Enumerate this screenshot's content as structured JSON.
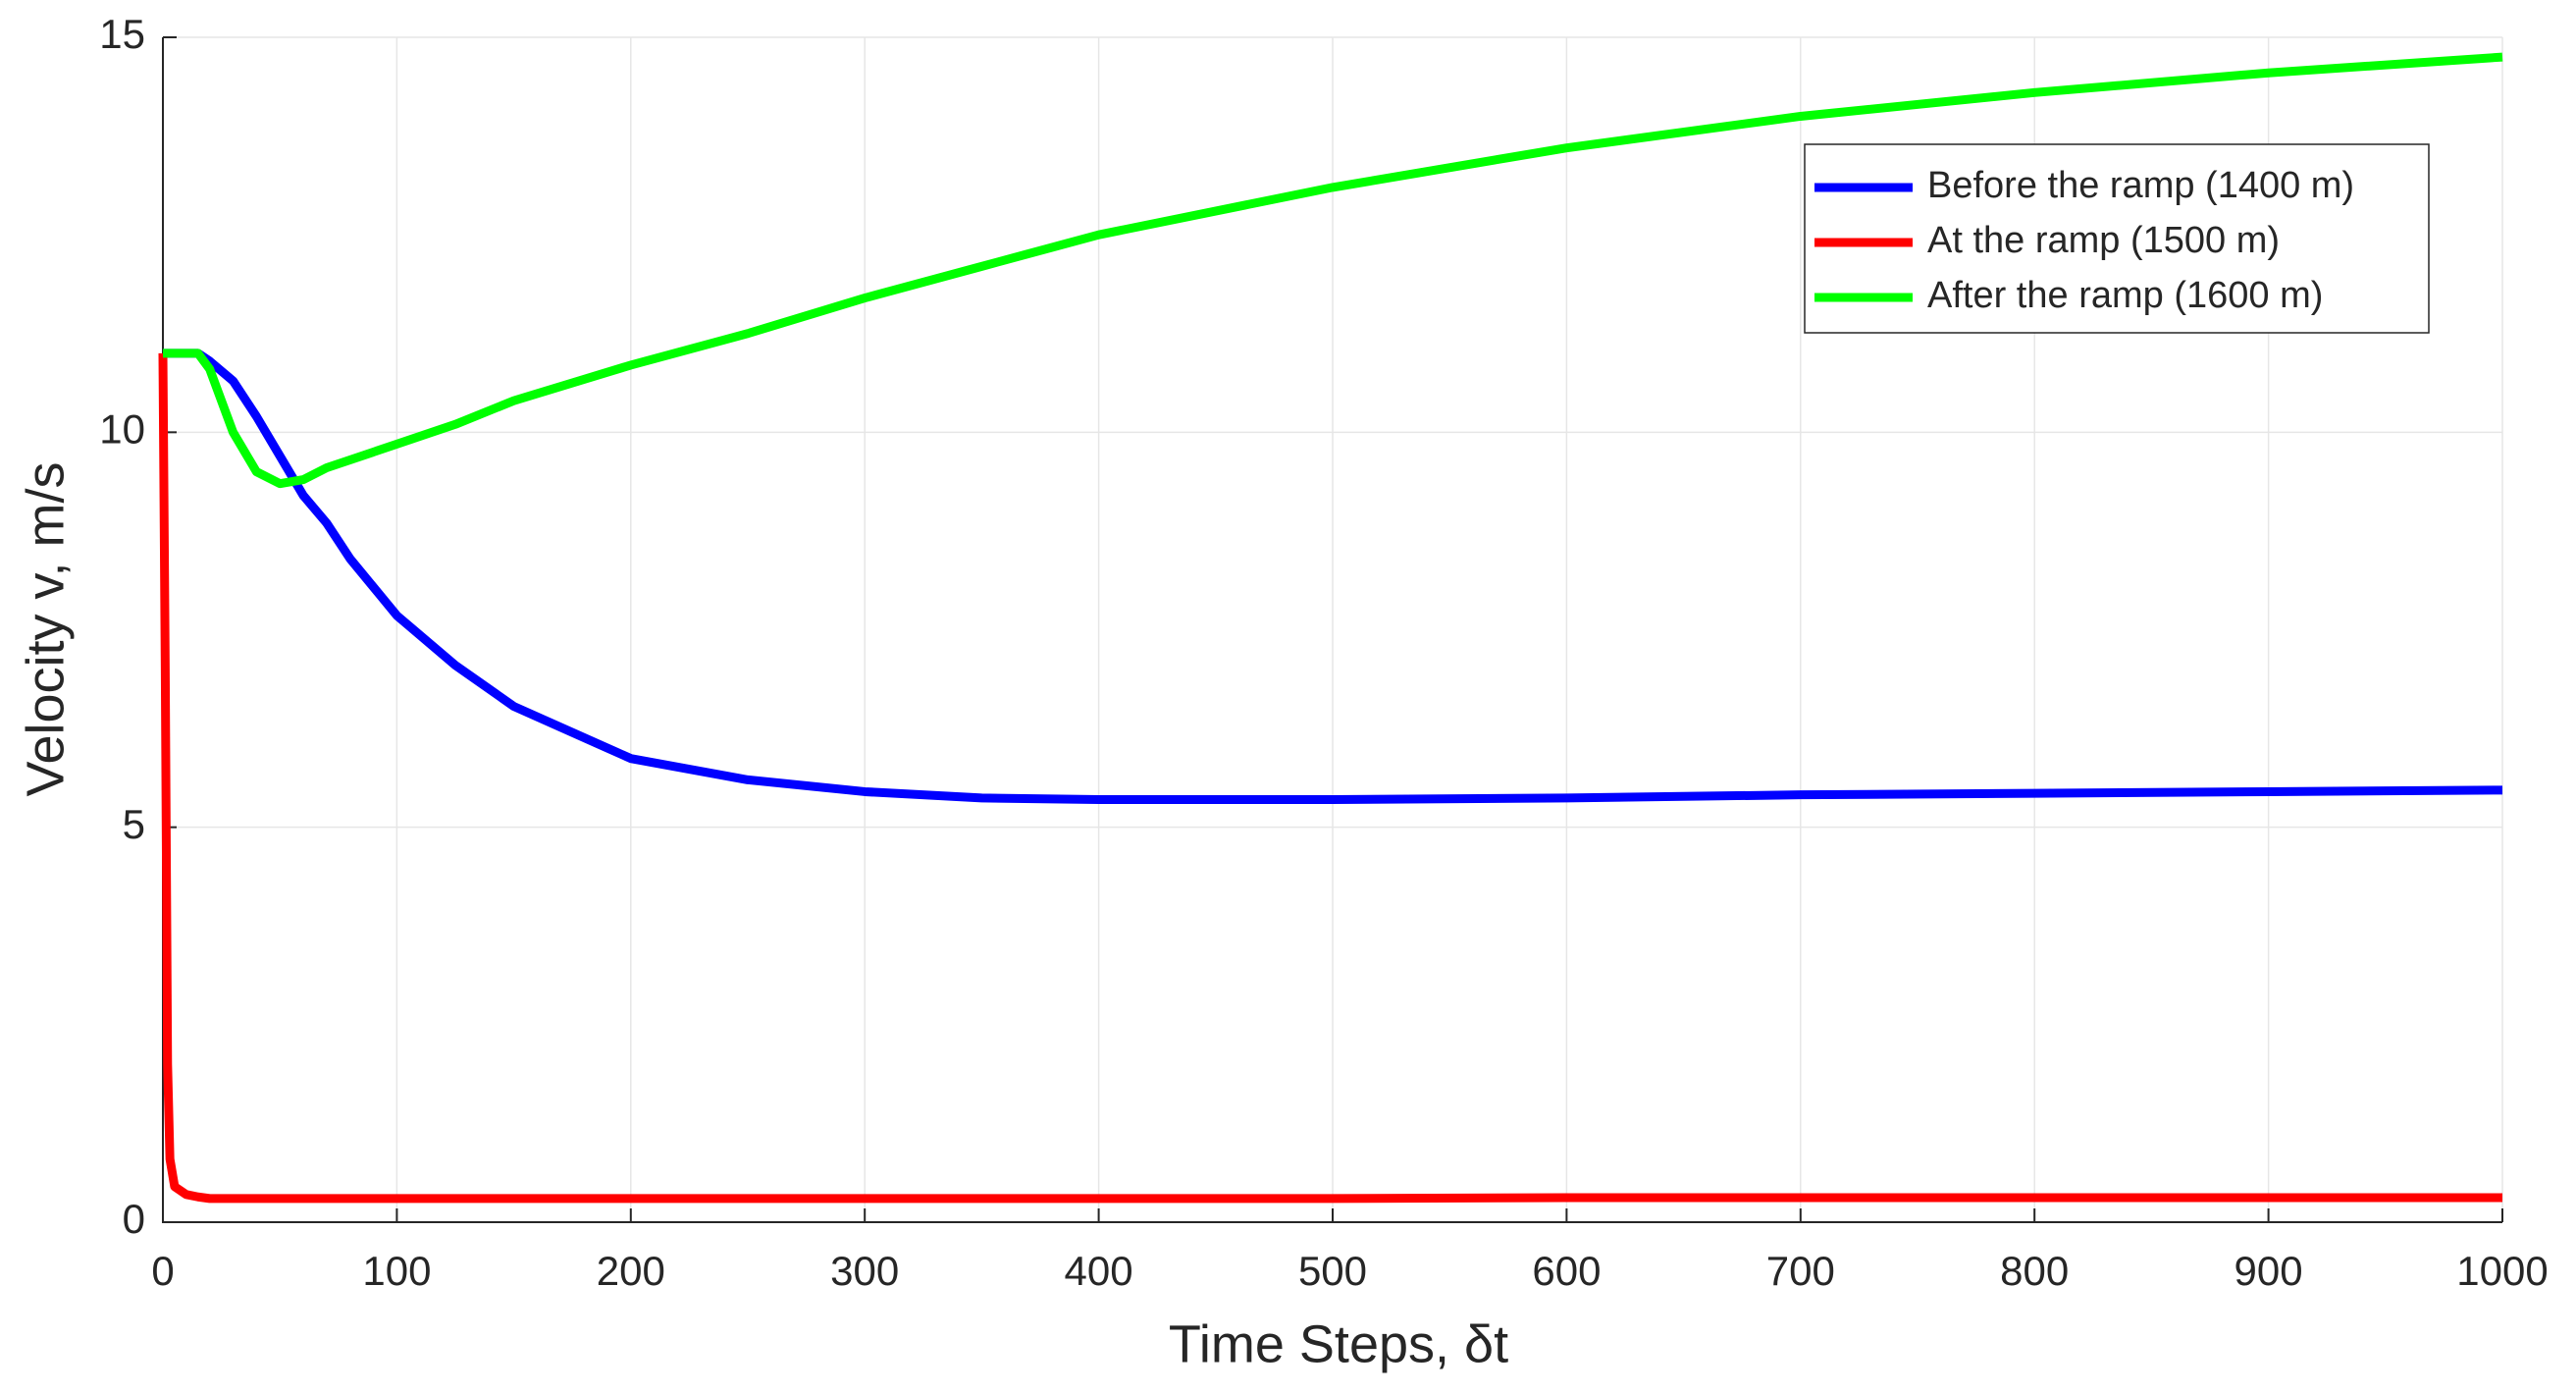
{
  "chart_data": {
    "type": "line",
    "xlabel": "Time Steps, δt",
    "ylabel": "Velocity v, m/s",
    "x": [
      0,
      1,
      2,
      3,
      5,
      10,
      15,
      20,
      30,
      40,
      50,
      60,
      70,
      80,
      100,
      125,
      150,
      200,
      250,
      300,
      350,
      400,
      500,
      600,
      700,
      800,
      900,
      1000
    ],
    "series": [
      {
        "name": "Before the ramp (1400 m)",
        "color": "#0000ff",
        "values": [
          11,
          11,
          11,
          11,
          11,
          11,
          11,
          10.9,
          10.65,
          10.2,
          9.7,
          9.2,
          8.85,
          8.4,
          7.68,
          7.05,
          6.53,
          5.87,
          5.6,
          5.45,
          5.37,
          5.35,
          5.35,
          5.37,
          5.41,
          5.43,
          5.45,
          5.47
        ]
      },
      {
        "name": "At the ramp (1500 m)",
        "color": "#ff0000",
        "values": [
          11,
          7,
          2,
          0.8,
          0.45,
          0.35,
          0.32,
          0.3,
          0.3,
          0.3,
          0.3,
          0.3,
          0.3,
          0.3,
          0.3,
          0.3,
          0.3,
          0.3,
          0.3,
          0.3,
          0.3,
          0.3,
          0.3,
          0.31,
          0.31,
          0.31,
          0.31,
          0.31
        ]
      },
      {
        "name": "After the ramp (1600 m)",
        "color": "#00ff00",
        "values": [
          11,
          11,
          11,
          11,
          11,
          11,
          11,
          10.8,
          10.0,
          9.5,
          9.35,
          9.4,
          9.55,
          9.65,
          9.85,
          10.1,
          10.4,
          10.85,
          11.25,
          11.7,
          12.1,
          12.5,
          13.1,
          13.6,
          14.0,
          14.3,
          14.55,
          14.75
        ]
      }
    ],
    "xlim": [
      0,
      1000
    ],
    "xticks": [
      0,
      100,
      200,
      300,
      400,
      500,
      600,
      700,
      800,
      900,
      1000
    ],
    "ylim": [
      0,
      15
    ],
    "yticks": [
      0,
      5,
      10,
      15
    ],
    "grid": true,
    "legend": "upper right"
  }
}
